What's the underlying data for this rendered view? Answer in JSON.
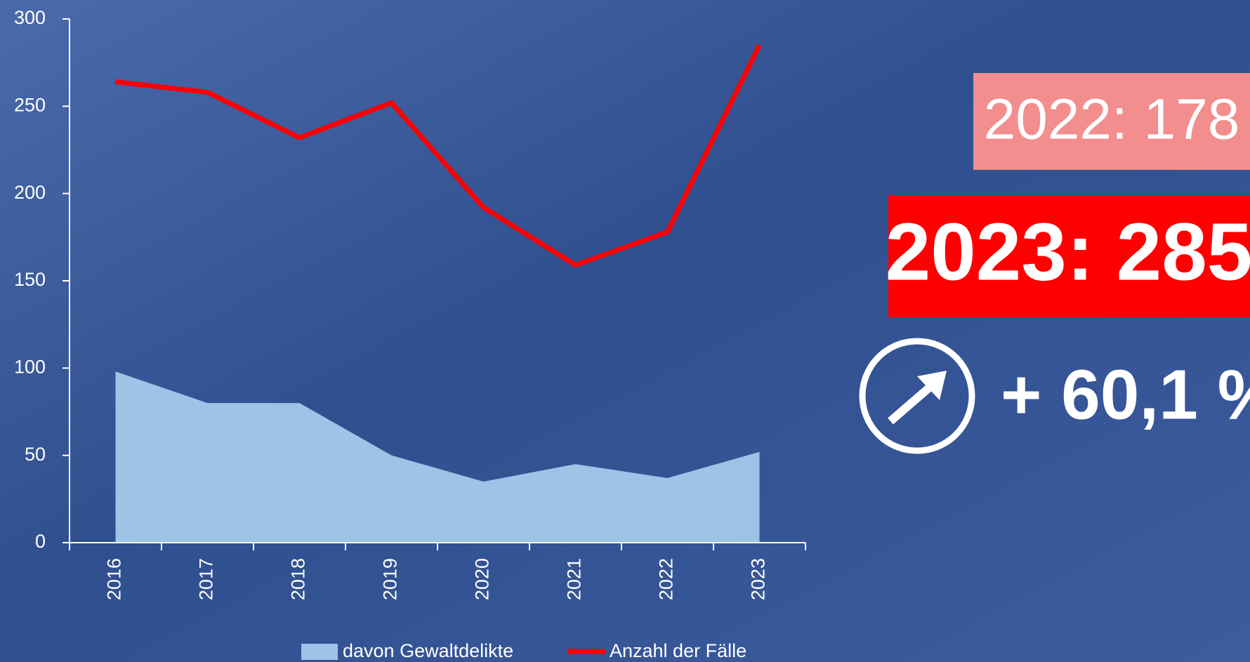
{
  "chart_data": {
    "type": "line",
    "categories": [
      "2016",
      "2017",
      "2018",
      "2019",
      "2020",
      "2021",
      "2022",
      "2023"
    ],
    "series": [
      {
        "name": "davon Gewaltdelikte",
        "type": "area",
        "color": "#9fc3e7",
        "values": [
          98,
          80,
          80,
          50,
          35,
          45,
          37,
          52
        ]
      },
      {
        "name": "Anzahl der Fälle",
        "type": "line",
        "color": "#ff0000",
        "values": [
          264,
          258,
          232,
          252,
          192,
          159,
          178,
          285
        ]
      }
    ],
    "ylim": [
      0,
      300
    ],
    "yticks": [
      0,
      50,
      100,
      150,
      200,
      250,
      300
    ],
    "annotations": [
      "2022: 178",
      "2023: 285",
      "+ 60,1 %"
    ]
  }
}
